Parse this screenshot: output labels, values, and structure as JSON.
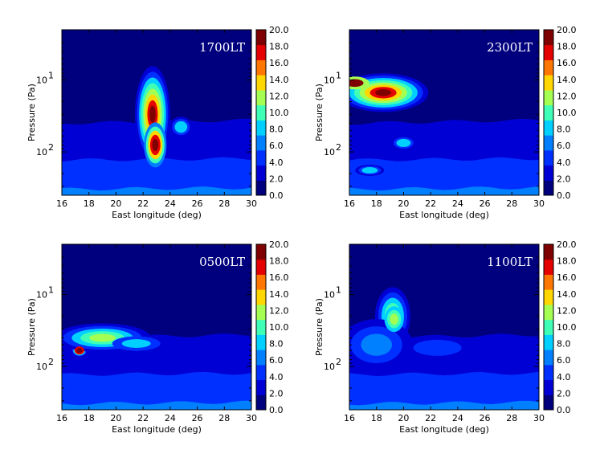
{
  "chart_data": [
    {
      "type": "heatmap",
      "panel_label": "1700LT",
      "xlabel": "East longitude (deg)",
      "ylabel": "Pressure (Pa)",
      "xlim": [
        16,
        30
      ],
      "xticks": [
        "16",
        "18",
        "20",
        "22",
        "24",
        "26",
        "28",
        "30"
      ],
      "yscale": "log",
      "yaxis_inverted": true,
      "yticks": [
        {
          "value": 10,
          "base": "10",
          "exp": "1"
        },
        {
          "value": 100,
          "base": "10",
          "exp": "2"
        }
      ],
      "colorbar": {
        "min": 0.0,
        "max": 20.0,
        "ticks": [
          "0.0",
          "2.0",
          "4.0",
          "6.0",
          "8.0",
          "10.0",
          "12.0",
          "14.0",
          "16.0",
          "18.0",
          "20.0"
        ]
      },
      "features": [
        {
          "lon": 22.7,
          "pressure": 30,
          "value": 20.0,
          "description": "vertical plume from ~15 to ~150 Pa"
        },
        {
          "lon": 24.8,
          "pressure": 45,
          "value": 9.0
        }
      ]
    },
    {
      "type": "heatmap",
      "panel_label": "2300LT",
      "xlabel": "East longitude (deg)",
      "ylabel": "Pressure (Pa)",
      "xlim": [
        16,
        30
      ],
      "xticks": [
        "16",
        "18",
        "20",
        "22",
        "24",
        "26",
        "28",
        "30"
      ],
      "yscale": "log",
      "yaxis_inverted": true,
      "yticks": [
        {
          "value": 10,
          "base": "10",
          "exp": "1"
        },
        {
          "value": 100,
          "base": "10",
          "exp": "2"
        }
      ],
      "colorbar": {
        "min": 0.0,
        "max": 20.0,
        "ticks": [
          "0.0",
          "2.0",
          "4.0",
          "6.0",
          "8.0",
          "10.0",
          "12.0",
          "14.0",
          "16.0",
          "18.0",
          "20.0"
        ]
      },
      "features": [
        {
          "lon": 18.5,
          "pressure": 15,
          "value": 20.0,
          "description": "detached layer ~10-30 Pa"
        },
        {
          "lon": 20.0,
          "pressure": 75,
          "value": 9.0
        },
        {
          "lon": 17.5,
          "pressure": 180,
          "value": 8.0
        }
      ]
    },
    {
      "type": "heatmap",
      "panel_label": "0500LT",
      "xlabel": "East longitude (deg)",
      "ylabel": "Pressure (Pa)",
      "xlim": [
        16,
        30
      ],
      "xticks": [
        "16",
        "18",
        "20",
        "22",
        "24",
        "26",
        "28",
        "30"
      ],
      "yscale": "log",
      "yaxis_inverted": true,
      "yticks": [
        {
          "value": 10,
          "base": "10",
          "exp": "1"
        },
        {
          "value": 100,
          "base": "10",
          "exp": "2"
        }
      ],
      "colorbar": {
        "min": 0.0,
        "max": 20.0,
        "ticks": [
          "0.0",
          "2.0",
          "4.0",
          "6.0",
          "8.0",
          "10.0",
          "12.0",
          "14.0",
          "16.0",
          "18.0",
          "20.0"
        ]
      },
      "features": [
        {
          "lon": 17.3,
          "pressure": 60,
          "value": 18.0
        },
        {
          "lon": 19.0,
          "pressure": 40,
          "value": 12.0,
          "description": "sloping layer descending eastward"
        }
      ]
    },
    {
      "type": "heatmap",
      "panel_label": "1100LT",
      "xlabel": "East longitude (deg)",
      "ylabel": "Pressure (Pa)",
      "xlim": [
        16,
        30
      ],
      "xticks": [
        "16",
        "18",
        "20",
        "22",
        "24",
        "26",
        "28",
        "30"
      ],
      "yscale": "log",
      "yaxis_inverted": true,
      "yticks": [
        {
          "value": 10,
          "base": "10",
          "exp": "1"
        },
        {
          "value": 100,
          "base": "10",
          "exp": "2"
        }
      ],
      "colorbar": {
        "min": 0.0,
        "max": 20.0,
        "ticks": [
          "0.0",
          "2.0",
          "4.0",
          "6.0",
          "8.0",
          "10.0",
          "12.0",
          "14.0",
          "16.0",
          "18.0",
          "20.0"
        ]
      },
      "features": [
        {
          "lon": 19.2,
          "pressure": 20,
          "value": 11.0
        },
        {
          "lon": 18.0,
          "pressure": 50,
          "value": 6.0
        }
      ]
    }
  ]
}
